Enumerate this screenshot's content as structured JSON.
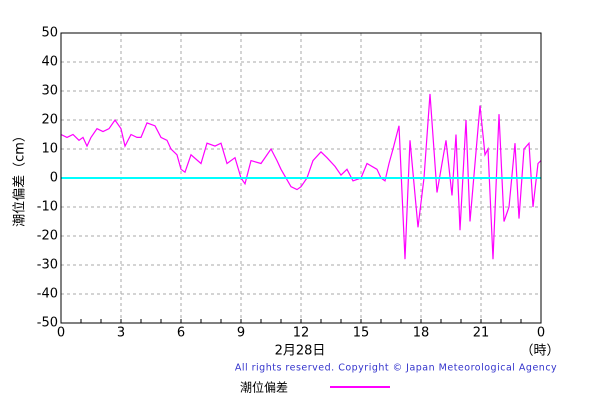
{
  "chart_data": {
    "type": "line",
    "ylabel": "潮位偏差（cm）",
    "xlabel": "2月28日",
    "xunit": "（時）",
    "copyright": "All rights reserved. Copyright © Japan Meteorological Agency",
    "x": [
      0,
      0.3,
      0.6,
      0.9,
      1.1,
      1.3,
      1.5,
      1.8,
      2.1,
      2.4,
      2.7,
      3.0,
      3.2,
      3.5,
      3.8,
      4.0,
      4.3,
      4.7,
      5.0,
      5.3,
      5.5,
      5.8,
      6.0,
      6.2,
      6.5,
      7.0,
      7.3,
      7.7,
      8.0,
      8.3,
      8.7,
      9.0,
      9.2,
      9.5,
      10.0,
      10.5,
      10.8,
      11.0,
      11.5,
      11.8,
      12.0,
      12.3,
      12.6,
      13.0,
      13.3,
      13.7,
      14.0,
      14.3,
      14.6,
      15.0,
      15.3,
      15.8,
      16.0,
      16.2,
      16.4,
      16.6,
      16.9,
      17.2,
      17.45,
      17.85,
      18.15,
      18.45,
      18.8,
      19.25,
      19.55,
      19.75,
      19.95,
      20.25,
      20.45,
      20.95,
      21.2,
      21.35,
      21.6,
      21.9,
      22.15,
      22.4,
      22.7,
      22.9,
      23.15,
      23.4,
      23.6,
      23.85,
      24
    ],
    "series": [
      {
        "name": "潮位偏差",
        "color": "#ff00ff",
        "values": [
          15,
          14,
          15,
          13,
          14,
          11,
          14,
          17,
          16,
          17,
          20,
          17,
          11,
          15,
          14,
          14,
          19,
          18,
          14,
          13,
          10,
          8,
          3,
          2,
          8,
          5,
          12,
          11,
          12,
          5,
          7,
          0,
          -2,
          6,
          5,
          10,
          6,
          3,
          -3,
          -4,
          -3,
          0,
          6,
          9,
          7,
          4,
          1,
          3,
          -1,
          0,
          5,
          3,
          0,
          -1,
          5,
          10,
          18,
          -28,
          13,
          -17,
          0,
          29,
          -5,
          13,
          -6,
          15,
          -18,
          20,
          -15,
          25,
          8,
          10,
          -28,
          22,
          -15,
          -10,
          12,
          -14,
          10,
          12,
          -10,
          5,
          6
        ]
      }
    ],
    "xlim": [
      0,
      24
    ],
    "xticks": [
      0,
      3,
      6,
      9,
      12,
      15,
      18,
      21,
      {
        "value": 24,
        "label": "0"
      }
    ],
    "ylim": [
      -50,
      50
    ],
    "yticks": [
      -50,
      -40,
      -30,
      -20,
      -10,
      0,
      10,
      20,
      30,
      40,
      50
    ],
    "grid": true,
    "reference_line": {
      "value": 0,
      "color": "#00ffff"
    }
  }
}
